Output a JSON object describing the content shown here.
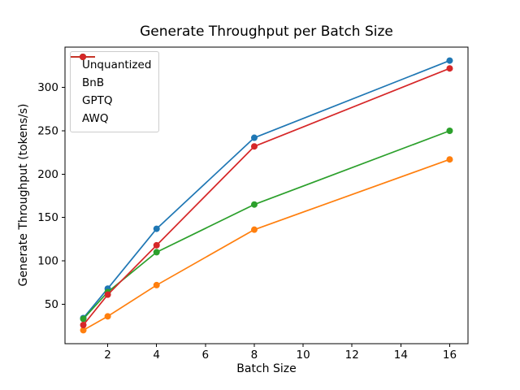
{
  "chart_data": {
    "type": "line",
    "title": "Generate Throughput per Batch Size",
    "xlabel": "Batch Size",
    "ylabel": "Generate Throughput (tokens/s)",
    "x": [
      1,
      2,
      4,
      8,
      16
    ],
    "series": [
      {
        "name": "Unquantized",
        "color": "#1f77b4",
        "values": [
          34,
          68,
          137,
          242,
          331
        ]
      },
      {
        "name": "BnB",
        "color": "#ff7f0e",
        "values": [
          20,
          36,
          72,
          136,
          217
        ]
      },
      {
        "name": "GPTQ",
        "color": "#2ca02c",
        "values": [
          33,
          64,
          110,
          165,
          250
        ]
      },
      {
        "name": "AWQ",
        "color": "#d62728",
        "values": [
          26,
          61,
          118,
          232,
          322
        ]
      }
    ],
    "xticks": [
      2,
      4,
      6,
      8,
      10,
      12,
      14,
      16
    ],
    "yticks": [
      50,
      100,
      150,
      200,
      250,
      300
    ],
    "xlim": [
      0.25,
      16.75
    ],
    "ylim": [
      4.45,
      346.55
    ],
    "marker": "o",
    "grid": false,
    "legend_position": "upper left",
    "axis_color": "#000000",
    "background_color": "#ffffff"
  }
}
